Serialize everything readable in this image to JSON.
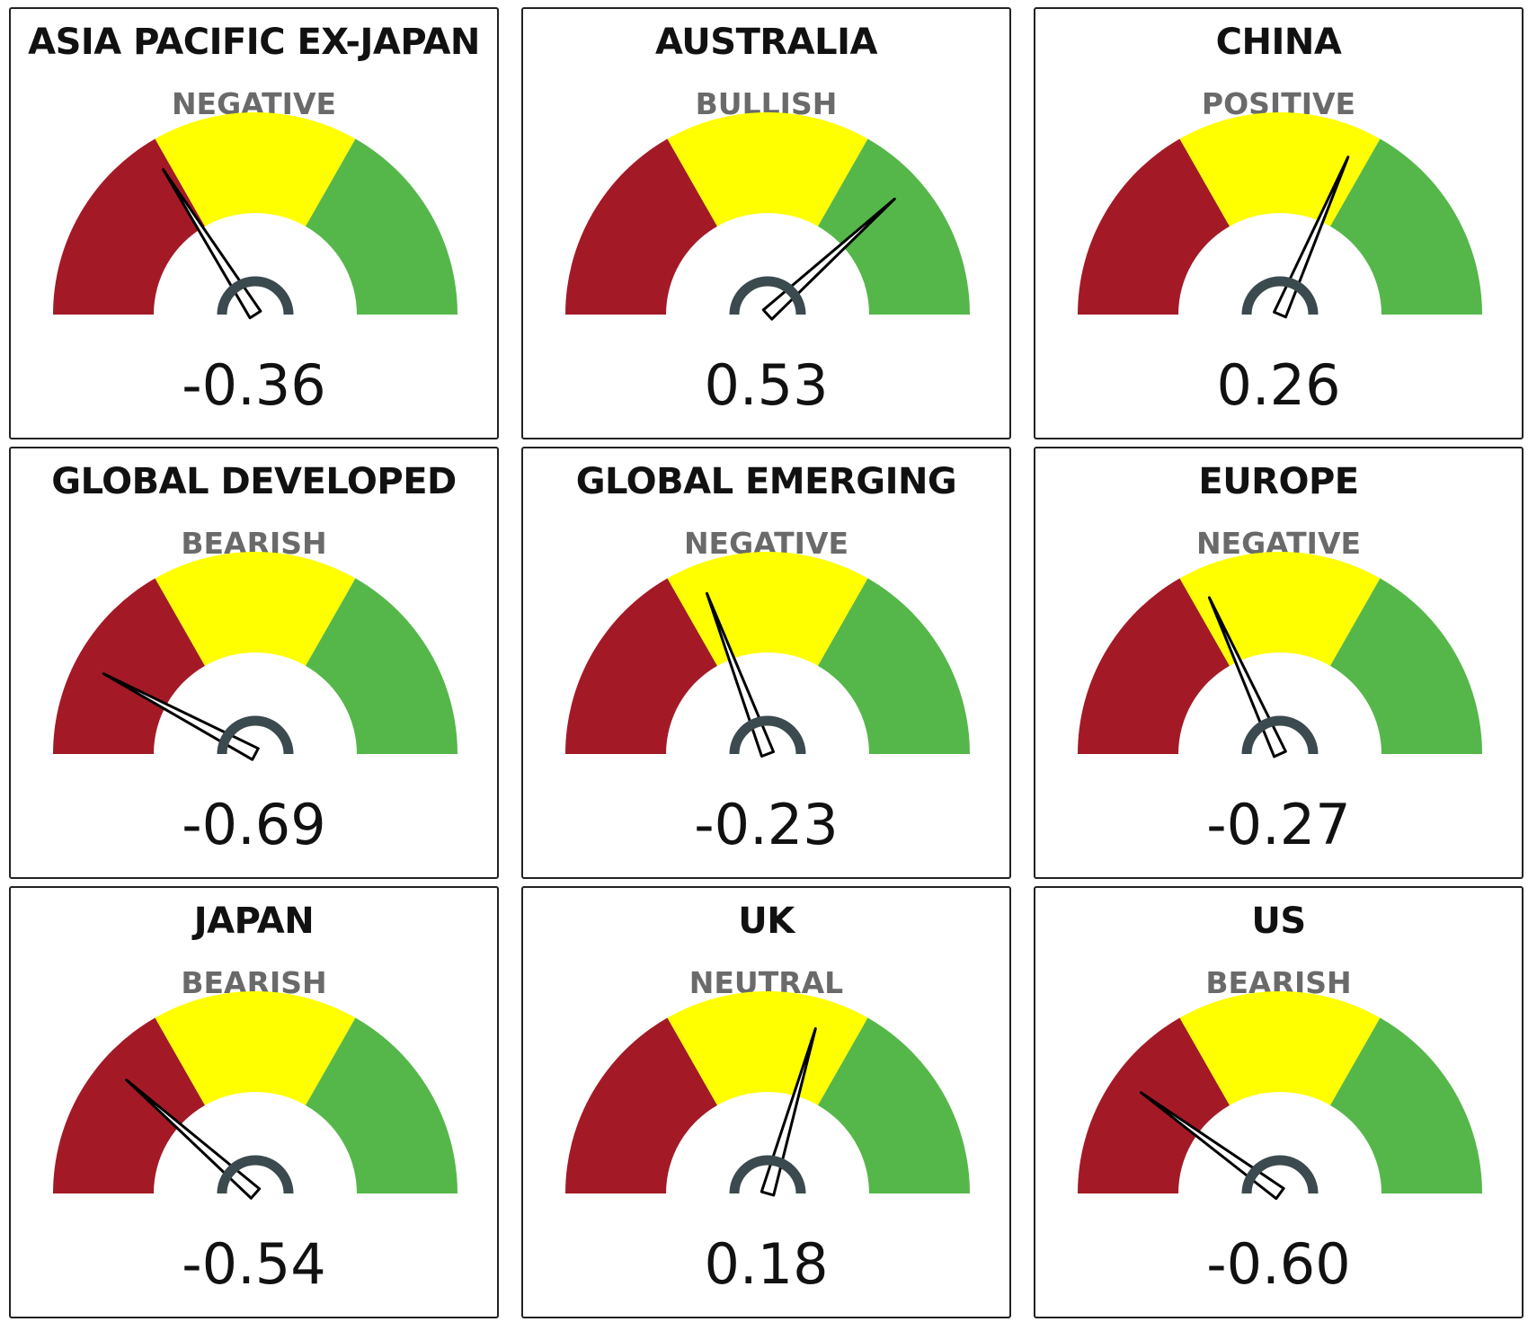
{
  "colors": {
    "bearish_band": "#a31a26",
    "neutral_band": "#ffff00",
    "bullish_band": "#55b74a",
    "needle": "#000000",
    "hub": "#3b4a4e",
    "status_text": "#6a6a6a"
  },
  "chart_data": [
    {
      "type": "gauge",
      "title": "ASIA PACIFIC EX-JAPAN",
      "status": "NEGATIVE",
      "value": -0.36,
      "value_label": "-0.36",
      "range": [
        -1,
        1
      ],
      "bands": [
        {
          "from": -1,
          "to": -0.33,
          "color": "#a31a26"
        },
        {
          "from": -0.33,
          "to": 0.33,
          "color": "#ffff00"
        },
        {
          "from": 0.33,
          "to": 1,
          "color": "#55b74a"
        }
      ]
    },
    {
      "type": "gauge",
      "title": "AUSTRALIA",
      "status": "BULLISH",
      "value": 0.53,
      "value_label": "0.53",
      "range": [
        -1,
        1
      ],
      "bands": [
        {
          "from": -1,
          "to": -0.33,
          "color": "#a31a26"
        },
        {
          "from": -0.33,
          "to": 0.33,
          "color": "#ffff00"
        },
        {
          "from": 0.33,
          "to": 1,
          "color": "#55b74a"
        }
      ]
    },
    {
      "type": "gauge",
      "title": "CHINA",
      "status": "POSITIVE",
      "value": 0.26,
      "value_label": "0.26",
      "range": [
        -1,
        1
      ],
      "bands": [
        {
          "from": -1,
          "to": -0.33,
          "color": "#a31a26"
        },
        {
          "from": -0.33,
          "to": 0.33,
          "color": "#ffff00"
        },
        {
          "from": 0.33,
          "to": 1,
          "color": "#55b74a"
        }
      ]
    },
    {
      "type": "gauge",
      "title": "GLOBAL DEVELOPED",
      "status": "BEARISH",
      "value": -0.69,
      "value_label": "-0.69",
      "range": [
        -1,
        1
      ],
      "bands": [
        {
          "from": -1,
          "to": -0.33,
          "color": "#a31a26"
        },
        {
          "from": -0.33,
          "to": 0.33,
          "color": "#ffff00"
        },
        {
          "from": 0.33,
          "to": 1,
          "color": "#55b74a"
        }
      ]
    },
    {
      "type": "gauge",
      "title": "GLOBAL EMERGING",
      "status": "NEGATIVE",
      "value": -0.23,
      "value_label": "-0.23",
      "range": [
        -1,
        1
      ],
      "bands": [
        {
          "from": -1,
          "to": -0.33,
          "color": "#a31a26"
        },
        {
          "from": -0.33,
          "to": 0.33,
          "color": "#ffff00"
        },
        {
          "from": 0.33,
          "to": 1,
          "color": "#55b74a"
        }
      ]
    },
    {
      "type": "gauge",
      "title": "EUROPE",
      "status": "NEGATIVE",
      "value": -0.27,
      "value_label": "-0.27",
      "range": [
        -1,
        1
      ],
      "bands": [
        {
          "from": -1,
          "to": -0.33,
          "color": "#a31a26"
        },
        {
          "from": -0.33,
          "to": 0.33,
          "color": "#ffff00"
        },
        {
          "from": 0.33,
          "to": 1,
          "color": "#55b74a"
        }
      ]
    },
    {
      "type": "gauge",
      "title": "JAPAN",
      "status": "BEARISH",
      "value": -0.54,
      "value_label": "-0.54",
      "range": [
        -1,
        1
      ],
      "bands": [
        {
          "from": -1,
          "to": -0.33,
          "color": "#a31a26"
        },
        {
          "from": -0.33,
          "to": 0.33,
          "color": "#ffff00"
        },
        {
          "from": 0.33,
          "to": 1,
          "color": "#55b74a"
        }
      ]
    },
    {
      "type": "gauge",
      "title": "UK",
      "status": "NEUTRAL",
      "value": 0.18,
      "value_label": "0.18",
      "range": [
        -1,
        1
      ],
      "bands": [
        {
          "from": -1,
          "to": -0.33,
          "color": "#a31a26"
        },
        {
          "from": -0.33,
          "to": 0.33,
          "color": "#ffff00"
        },
        {
          "from": 0.33,
          "to": 1,
          "color": "#55b74a"
        }
      ]
    },
    {
      "type": "gauge",
      "title": "US",
      "status": "BEARISH",
      "value": -0.6,
      "value_label": "-0.60",
      "range": [
        -1,
        1
      ],
      "bands": [
        {
          "from": -1,
          "to": -0.33,
          "color": "#a31a26"
        },
        {
          "from": -0.33,
          "to": 0.33,
          "color": "#ffff00"
        },
        {
          "from": 0.33,
          "to": 1,
          "color": "#55b74a"
        }
      ]
    }
  ]
}
